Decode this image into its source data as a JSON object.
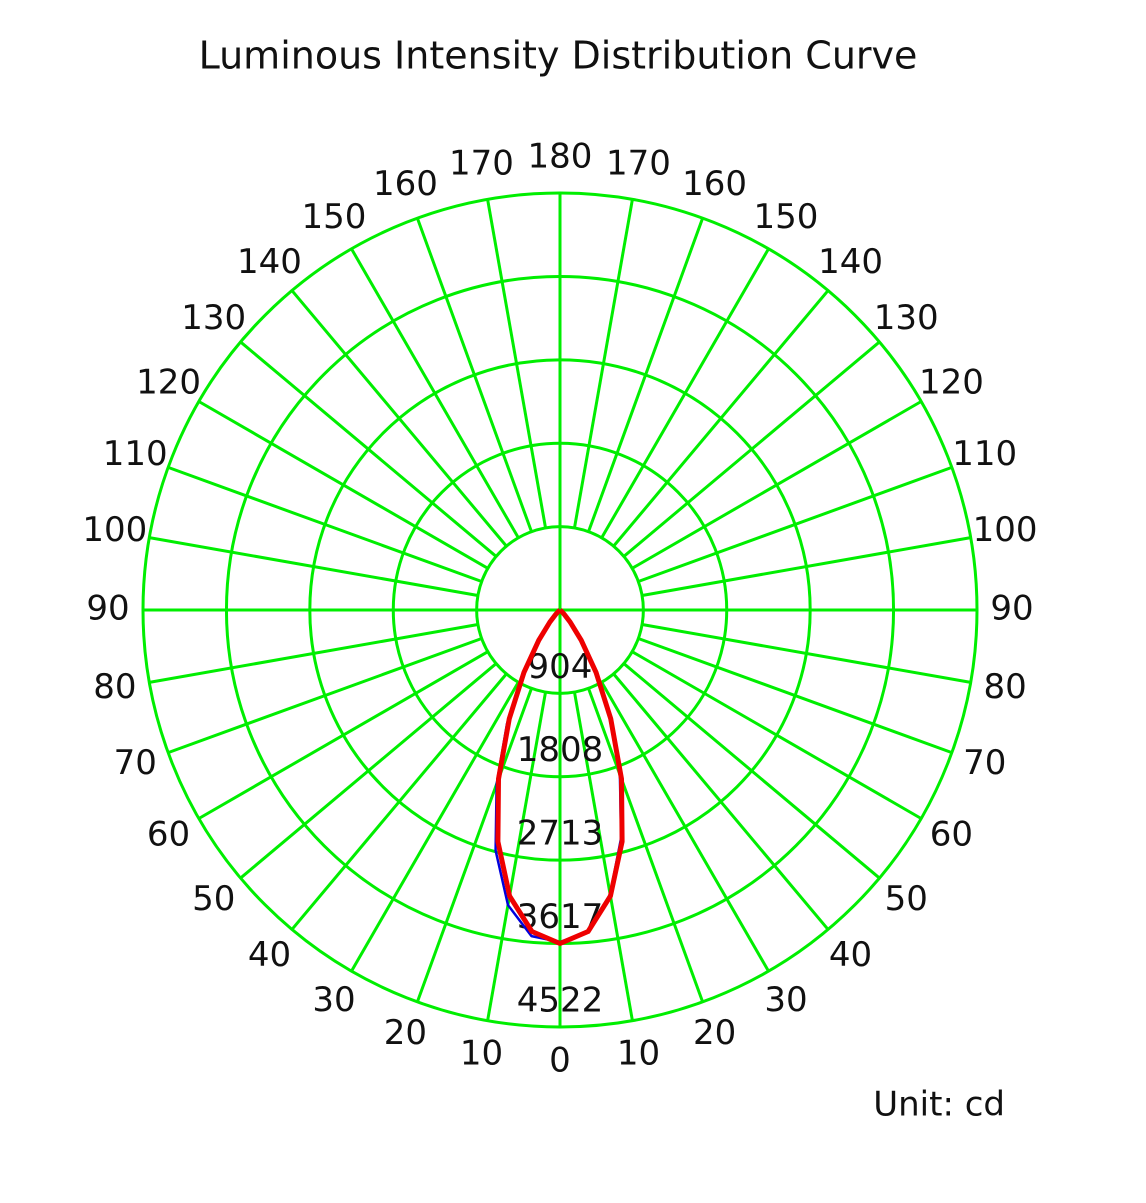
{
  "chart_data": {
    "type": "polar",
    "title": "Luminous Intensity Distribution Curve",
    "unit_label": "Unit: cd",
    "rlim": [
      0,
      4522
    ],
    "rticks": [
      904,
      1808,
      2713,
      3617,
      4522
    ],
    "angle_ticks": [
      {
        "value": -170,
        "label": "170"
      },
      {
        "value": -160,
        "label": "160"
      },
      {
        "value": -150,
        "label": "150"
      },
      {
        "value": -140,
        "label": "140"
      },
      {
        "value": -130,
        "label": "130"
      },
      {
        "value": -120,
        "label": "120"
      },
      {
        "value": -110,
        "label": "110"
      },
      {
        "value": -100,
        "label": "100"
      },
      {
        "value": -90,
        "label": "90"
      },
      {
        "value": -80,
        "label": "80"
      },
      {
        "value": -70,
        "label": "70"
      },
      {
        "value": -60,
        "label": "60"
      },
      {
        "value": -50,
        "label": "50"
      },
      {
        "value": -40,
        "label": "40"
      },
      {
        "value": -30,
        "label": "30"
      },
      {
        "value": -20,
        "label": "20"
      },
      {
        "value": -10,
        "label": "10"
      },
      0,
      10,
      20,
      30,
      40,
      50,
      60,
      70,
      80,
      90,
      100,
      110,
      120,
      130,
      140,
      150,
      160,
      170,
      180
    ],
    "grid_color": "#00ee00",
    "x": [
      -60,
      -55,
      -50,
      -45,
      -40,
      -35,
      -30,
      -25,
      -20,
      -15,
      -10,
      -5,
      0,
      5,
      10,
      15,
      20,
      25,
      30,
      35,
      40,
      45,
      50,
      55,
      60
    ],
    "series": [
      {
        "color": "#0000dd",
        "values": [
          0,
          0,
          20,
          70,
          190,
          430,
          820,
          1360,
          2010,
          2700,
          3250,
          3550,
          3600,
          3500,
          3130,
          2560,
          1900,
          1260,
          740,
          380,
          160,
          55,
          15,
          0,
          0
        ]
      },
      {
        "color": "#ee0000",
        "values": [
          0,
          0,
          20,
          60,
          170,
          400,
          780,
          1300,
          1950,
          2600,
          3150,
          3500,
          3617,
          3500,
          3150,
          2600,
          1950,
          1300,
          780,
          400,
          170,
          60,
          20,
          0,
          0
        ]
      }
    ]
  }
}
